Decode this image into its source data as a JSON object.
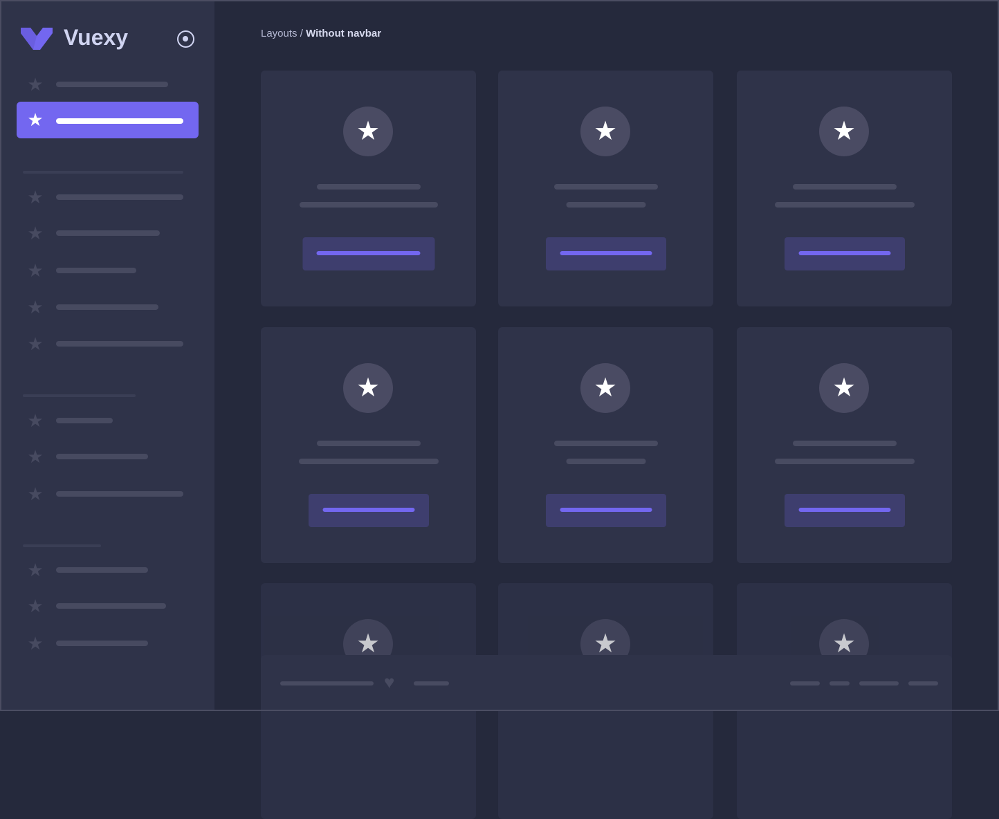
{
  "brand": {
    "name": "Vuexy",
    "logo_color": "#7367f0"
  },
  "breadcrumb": {
    "parent": "Layouts",
    "separator": " / ",
    "current": "Without navbar"
  },
  "colors": {
    "sidebar": "#2f3349",
    "background": "#25293c",
    "accent": "#7367f0"
  },
  "icons": {
    "nav": "star-icon",
    "toggle": "radio-circle-icon",
    "footer": "heart-icon"
  }
}
